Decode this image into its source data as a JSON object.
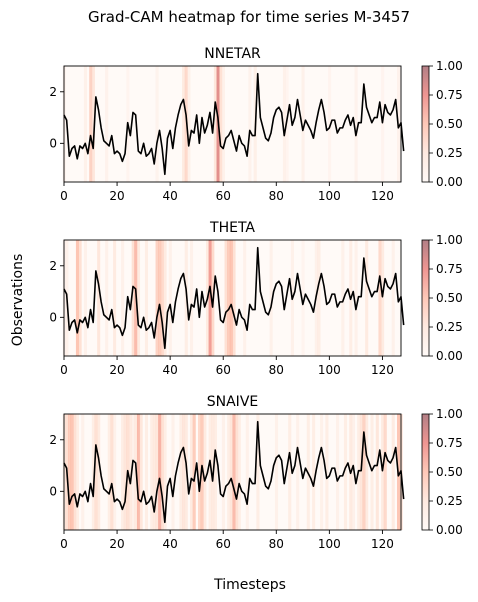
{
  "chart_data": {
    "type": "line",
    "title": "Grad-CAM heatmap for time series M-3457",
    "xlabel": "Timesteps",
    "ylabel": "Observations",
    "xlim": [
      0,
      127
    ],
    "ylim": [
      -1.5,
      3.0
    ],
    "xticks": [
      "0",
      "20",
      "40",
      "60",
      "80",
      "100",
      "120"
    ],
    "yticks": [
      "0",
      "2"
    ],
    "colorbar_ticks": [
      "0.00",
      "0.25",
      "0.50",
      "0.75",
      "1.00"
    ],
    "colormap": {
      "low": "#fff5f0",
      "mid": "#fcae91",
      "high": "#67000d",
      "alpha": 0.5
    },
    "line_color": "#000000",
    "series": {
      "values": [
        1.1,
        0.9,
        -0.5,
        -0.2,
        -0.1,
        -0.6,
        -0.1,
        -0.2,
        0.0,
        -0.4,
        0.3,
        -0.2,
        1.8,
        1.3,
        0.6,
        0.1,
        0.0,
        -0.1,
        0.3,
        -0.4,
        -0.3,
        -0.4,
        -0.7,
        -0.4,
        0.8,
        0.3,
        1.2,
        1.1,
        -0.3,
        -0.4,
        0.0,
        -0.5,
        -0.4,
        -0.2,
        -0.8,
        0.0,
        0.5,
        -0.2,
        -1.2,
        0.2,
        0.5,
        -0.2,
        0.6,
        1.1,
        1.5,
        1.7,
        1.1,
        -0.1,
        0.5,
        0.4,
        1.1,
        0.0,
        1.0,
        0.4,
        0.7,
        1.2,
        0.4,
        1.6,
        1.0,
        -0.1,
        -0.2,
        0.2,
        0.3,
        0.5,
        0.1,
        -0.3,
        0.3,
        0.0,
        -0.1,
        -0.5,
        0.5,
        0.3,
        0.3,
        2.7,
        1.0,
        0.6,
        0.2,
        0.1,
        0.4,
        1.0,
        1.3,
        1.4,
        1.2,
        0.3,
        0.9,
        1.5,
        0.7,
        1.0,
        1.7,
        1.1,
        0.5,
        0.9,
        0.7,
        0.5,
        0.2,
        0.8,
        1.3,
        1.7,
        1.2,
        0.5,
        0.6,
        0.9,
        0.9,
        0.4,
        0.6,
        0.6,
        0.9,
        1.1,
        0.7,
        1.0,
        0.3,
        0.8,
        0.8,
        2.3,
        1.4,
        1.1,
        0.8,
        1.0,
        1.0,
        1.6,
        0.8,
        1.5,
        1.2,
        1.1,
        1.3,
        1.7,
        0.6,
        0.8,
        -0.3
      ]
    },
    "panels": [
      {
        "title": "NNETAR",
        "heat": [
          [
            0,
            0.08
          ],
          [
            8,
            0.1
          ],
          [
            10,
            0.4
          ],
          [
            11,
            0.25
          ],
          [
            16,
            0.08
          ],
          [
            24,
            0.05
          ],
          [
            35,
            0.07
          ],
          [
            45,
            0.2
          ],
          [
            46,
            0.35
          ],
          [
            47,
            0.1
          ],
          [
            57,
            0.25
          ],
          [
            58,
            0.8
          ],
          [
            59,
            0.3
          ],
          [
            60,
            0.1
          ],
          [
            70,
            0.08
          ],
          [
            72,
            0.12
          ],
          [
            83,
            0.1
          ],
          [
            84,
            0.05
          ],
          [
            90,
            0.1
          ],
          [
            100,
            0.05
          ],
          [
            110,
            0.08
          ],
          [
            120,
            0.05
          ],
          [
            126,
            0.08
          ]
        ]
      },
      {
        "title": "THETA",
        "heat": [
          [
            0,
            0.05
          ],
          [
            1,
            0.1
          ],
          [
            5,
            0.5
          ],
          [
            6,
            0.3
          ],
          [
            8,
            0.1
          ],
          [
            13,
            0.25
          ],
          [
            16,
            0.1
          ],
          [
            19,
            0.2
          ],
          [
            22,
            0.1
          ],
          [
            26,
            0.3
          ],
          [
            27,
            0.55
          ],
          [
            28,
            0.2
          ],
          [
            31,
            0.15
          ],
          [
            35,
            0.4
          ],
          [
            36,
            0.45
          ],
          [
            37,
            0.35
          ],
          [
            38,
            0.2
          ],
          [
            40,
            0.1
          ],
          [
            46,
            0.15
          ],
          [
            48,
            0.1
          ],
          [
            54,
            0.2
          ],
          [
            55,
            0.7
          ],
          [
            56,
            0.35
          ],
          [
            61,
            0.3
          ],
          [
            62,
            0.45
          ],
          [
            63,
            0.5
          ],
          [
            64,
            0.3
          ],
          [
            68,
            0.1
          ],
          [
            78,
            0.1
          ],
          [
            86,
            0.1
          ],
          [
            90,
            0.05
          ],
          [
            95,
            0.1
          ],
          [
            96,
            0.15
          ],
          [
            105,
            0.1
          ],
          [
            108,
            0.15
          ],
          [
            110,
            0.1
          ],
          [
            114,
            0.2
          ],
          [
            119,
            0.35
          ],
          [
            120,
            0.2
          ],
          [
            124,
            0.1
          ]
        ]
      },
      {
        "title": "SNAIVE",
        "heat": [
          [
            0,
            0.15
          ],
          [
            1,
            0.3
          ],
          [
            2,
            0.45
          ],
          [
            3,
            0.5
          ],
          [
            4,
            0.3
          ],
          [
            5,
            0.15
          ],
          [
            7,
            0.1
          ],
          [
            11,
            0.15
          ],
          [
            12,
            0.3
          ],
          [
            13,
            0.2
          ],
          [
            17,
            0.15
          ],
          [
            18,
            0.3
          ],
          [
            19,
            0.1
          ],
          [
            22,
            0.15
          ],
          [
            23,
            0.25
          ],
          [
            24,
            0.3
          ],
          [
            25,
            0.2
          ],
          [
            26,
            0.1
          ],
          [
            27,
            0.2
          ],
          [
            28,
            0.55
          ],
          [
            29,
            0.25
          ],
          [
            31,
            0.15
          ],
          [
            33,
            0.15
          ],
          [
            34,
            0.2
          ],
          [
            35,
            0.25
          ],
          [
            36,
            0.6
          ],
          [
            37,
            0.3
          ],
          [
            38,
            0.15
          ],
          [
            41,
            0.1
          ],
          [
            44,
            0.15
          ],
          [
            45,
            0.25
          ],
          [
            46,
            0.2
          ],
          [
            48,
            0.2
          ],
          [
            49,
            0.45
          ],
          [
            51,
            0.35
          ],
          [
            52,
            0.45
          ],
          [
            53,
            0.2
          ],
          [
            55,
            0.15
          ],
          [
            56,
            0.2
          ],
          [
            57,
            0.15
          ],
          [
            60,
            0.1
          ],
          [
            62,
            0.15
          ],
          [
            63,
            0.25
          ],
          [
            64,
            0.55
          ],
          [
            65,
            0.3
          ],
          [
            66,
            0.15
          ],
          [
            69,
            0.1
          ],
          [
            73,
            0.15
          ],
          [
            80,
            0.1
          ],
          [
            85,
            0.15
          ],
          [
            88,
            0.1
          ],
          [
            92,
            0.15
          ],
          [
            94,
            0.15
          ],
          [
            97,
            0.1
          ],
          [
            99,
            0.15
          ],
          [
            103,
            0.1
          ],
          [
            106,
            0.15
          ],
          [
            108,
            0.2
          ],
          [
            109,
            0.1
          ],
          [
            111,
            0.15
          ],
          [
            112,
            0.25
          ],
          [
            113,
            0.4
          ],
          [
            114,
            0.2
          ],
          [
            116,
            0.15
          ],
          [
            118,
            0.25
          ],
          [
            120,
            0.2
          ],
          [
            121,
            0.35
          ],
          [
            124,
            0.2
          ],
          [
            126,
            0.5
          ],
          [
            127,
            0.3
          ]
        ]
      }
    ]
  }
}
